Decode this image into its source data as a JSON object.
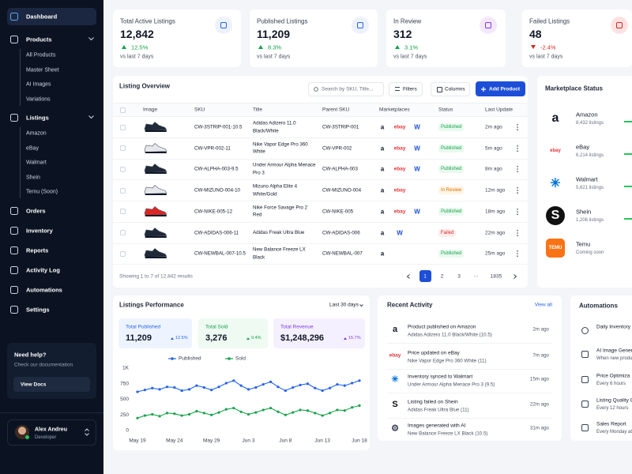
{
  "sidebar": {
    "nav": [
      {
        "label": "Dashboard",
        "active": true
      },
      {
        "label": "Products",
        "children": [
          "All Products",
          "Master Sheet",
          "AI Images",
          "Variations"
        ]
      },
      {
        "label": "Listings",
        "children": [
          "Amazon",
          "eBay",
          "Walmart",
          "Shein",
          "Temu (Soon)"
        ]
      },
      {
        "label": "Orders"
      },
      {
        "label": "Inventory"
      },
      {
        "label": "Reports"
      },
      {
        "label": "Activity Log"
      },
      {
        "label": "Automations"
      },
      {
        "label": "Settings"
      }
    ],
    "help": {
      "title": "Need help?",
      "text": "Check our documentation",
      "button": "View Docs"
    },
    "user": {
      "name": "Alex Andreu",
      "role": "Developer"
    }
  },
  "stats": [
    {
      "title": "Total Active Listings",
      "value": "12,842",
      "change": "12.5%",
      "direction": "up",
      "change_color": "#16a34a",
      "period": "vs last 7 days",
      "icon_color": "#2563eb",
      "icon_bg": "#eef2ff"
    },
    {
      "title": "Published Listings",
      "value": "11,209",
      "change": "8.3%",
      "direction": "up",
      "change_color": "#16a34a",
      "period": "vs last 7 days",
      "icon_color": "#2563eb",
      "icon_bg": "#eef2ff"
    },
    {
      "title": "In Review",
      "value": "312",
      "change": "3.1%",
      "direction": "up",
      "change_color": "#16a34a",
      "period": "vs last 7 days",
      "icon_color": "#7c3aed",
      "icon_bg": "#f3e8ff"
    },
    {
      "title": "Failed Listings",
      "value": "48",
      "change": "-2.4%",
      "direction": "down",
      "change_color": "#dc2626",
      "period": "vs last 7 days",
      "icon_color": "#dc2626",
      "icon_bg": "#fee2e2"
    }
  ],
  "listing_overview": {
    "title": "Listing Overview",
    "search_placeholder": "Search by SKU, Title...",
    "filters": "Filters",
    "columns": "Columns",
    "add_button": "Add Product",
    "headers": [
      "Image",
      "SKU",
      "Title",
      "Parent SKU",
      "Marketplaces",
      "Status",
      "Last Update"
    ],
    "rows": [
      {
        "shoe_color": "#1f2937",
        "sku": "CW-3STRIP-001-10.5",
        "title": "Adidas Adizero 11.0 Black/White",
        "parent_sku": "CW-3STRIP-001",
        "marketplaces": [
          {
            "glyph": "a",
            "color": "#111827"
          },
          {
            "glyph": "ebay",
            "color": "#e53238"
          },
          {
            "glyph": "W",
            "color": "#1d4ed8"
          }
        ],
        "status": "Published",
        "status_color": "#16a34a",
        "status_bg": "#e9f9ef",
        "updated": "2m ago"
      },
      {
        "shoe_color": "#e5e7eb",
        "sku": "CW-VPR-002-11",
        "title": "Nike Vapor Edge Pro 360 White",
        "parent_sku": "CW-VPR-002",
        "marketplaces": [
          {
            "glyph": "a",
            "color": "#111827"
          },
          {
            "glyph": "ebay",
            "color": "#e53238"
          },
          {
            "glyph": "W",
            "color": "#1d4ed8"
          }
        ],
        "status": "Published",
        "status_color": "#16a34a",
        "status_bg": "#e9f9ef",
        "updated": "5m ago"
      },
      {
        "shoe_color": "#1f2937",
        "sku": "CW-ALPHA-003-9.5",
        "title": "Under Armour Alpha Menace Pro 3",
        "parent_sku": "CW-ALPHA-003",
        "marketplaces": [
          {
            "glyph": "a",
            "color": "#111827"
          },
          {
            "glyph": "ebay",
            "color": "#e53238"
          },
          {
            "glyph": "W",
            "color": "#1d4ed8"
          }
        ],
        "status": "Published",
        "status_color": "#16a34a",
        "status_bg": "#e9f9ef",
        "updated": "8m ago"
      },
      {
        "shoe_color": "#e5e7eb",
        "sku": "CW-MIZUNO-004-10",
        "title": "Mizuno Alpha Elite 4 White/Gold",
        "parent_sku": "CW-MIZUNO-004",
        "marketplaces": [
          {
            "glyph": "a",
            "color": "#111827"
          },
          {
            "glyph": "ebay",
            "color": "#e53238"
          }
        ],
        "status": "In Review",
        "status_color": "#d97706",
        "status_bg": "#fff4e5",
        "updated": "12m ago"
      },
      {
        "shoe_color": "#dc2626",
        "sku": "CW-NIKE-005-12",
        "title": "Nike Force Savage Pro 2 Red",
        "parent_sku": "CW-NIKE-005",
        "marketplaces": [
          {
            "glyph": "a",
            "color": "#111827"
          },
          {
            "glyph": "ebay",
            "color": "#e53238"
          },
          {
            "glyph": "W",
            "color": "#1d4ed8"
          }
        ],
        "status": "Published",
        "status_color": "#16a34a",
        "status_bg": "#e9f9ef",
        "updated": "18m ago"
      },
      {
        "shoe_color": "#1f2937",
        "sku": "CW-ADIDAS-006-11",
        "title": "Adidas Freak Ultra Blue",
        "parent_sku": "CW-ADIDAS-006",
        "marketplaces": [
          {
            "glyph": "a",
            "color": "#111827"
          },
          {
            "glyph": "W",
            "color": "#1d4ed8"
          }
        ],
        "status": "Failed",
        "status_color": "#dc2626",
        "status_bg": "#fdecec",
        "updated": "22m ago"
      },
      {
        "shoe_color": "#1f2937",
        "sku": "CW-NEWBAL-007-10.5",
        "title": "New Balance Freeze LX Black",
        "parent_sku": "CW-NEWBAL-007",
        "marketplaces": [
          {
            "glyph": "a",
            "color": "#111827"
          }
        ],
        "status": "Published",
        "status_color": "#16a34a",
        "status_bg": "#e9f9ef",
        "updated": "25m ago"
      }
    ],
    "summary": "Showing 1 to 7 of 12,842 results",
    "pages": [
      {
        "label": "1",
        "active": true
      },
      {
        "label": "2"
      },
      {
        "label": "3"
      },
      {
        "label": "···"
      },
      {
        "label": "1835"
      }
    ]
  },
  "marketplace_status": {
    "title": "Marketplace Status",
    "items": [
      {
        "name": "Amazon",
        "detail": "8,432 listings",
        "glyph": "a",
        "color": "#111827",
        "bg": "#ffffff",
        "bar_color": "#22c55e"
      },
      {
        "name": "eBay",
        "detail": "6,214 listings",
        "glyph": "ebay",
        "color": "#e53238",
        "bg": "#ffffff",
        "bar_color": "#22c55e"
      },
      {
        "name": "Walmart",
        "detail": "5,621 listings",
        "glyph": "✳",
        "color": "#0071dc",
        "bg": "#ffffff",
        "bar_color": "#22c55e"
      },
      {
        "name": "Shein",
        "detail": "1,206 listings",
        "glyph": "S",
        "color": "#ffffff",
        "bg": "#111111",
        "bar_color": "#22c55e"
      },
      {
        "name": "Temu",
        "detail": "Coming soon",
        "glyph": "TEMU",
        "color": "#ffffff",
        "bg": "#f97316"
      }
    ]
  },
  "performance": {
    "title": "Listings Performance",
    "range": "Last 30 days",
    "kpis": [
      {
        "label": "Total Published",
        "value": "11,209",
        "change": "12.5%",
        "color": "#2563eb",
        "bg": "#eef4ff"
      },
      {
        "label": "Total Sold",
        "value": "3,276",
        "change": "9.4%",
        "color": "#16a34a",
        "bg": "#eefaf2"
      },
      {
        "label": "Total Revenue",
        "value": "$1,248,296",
        "change": "15.7%",
        "color": "#7c3aed",
        "bg": "#f5f0ff"
      }
    ]
  },
  "chart_data": {
    "type": "line",
    "categories": [
      "May 19",
      null,
      null,
      null,
      null,
      "May 24",
      null,
      null,
      null,
      null,
      "May 29",
      null,
      null,
      null,
      null,
      "Jun 3",
      null,
      null,
      null,
      null,
      "Jun 8",
      null,
      null,
      null,
      null,
      "Jun 13",
      null,
      null,
      null,
      null,
      "Jun 18"
    ],
    "series": [
      {
        "name": "Published",
        "color": "#2563eb",
        "values": [
          620,
          650,
          680,
          660,
          700,
          690,
          640,
          660,
          720,
          690,
          650,
          700,
          760,
          800,
          720,
          660,
          690,
          740,
          780,
          700,
          640,
          690,
          730,
          750,
          680,
          640,
          680,
          740,
          720,
          760,
          800
        ]
      },
      {
        "name": "Sold",
        "color": "#16a34a",
        "values": [
          200,
          240,
          260,
          230,
          280,
          270,
          240,
          260,
          310,
          280,
          250,
          290,
          340,
          360,
          300,
          260,
          290,
          330,
          360,
          300,
          250,
          290,
          330,
          320,
          280,
          240,
          280,
          330,
          320,
          370,
          400
        ]
      }
    ],
    "ylim": [
      0,
      1000
    ],
    "yticks": [
      0,
      250,
      500,
      750,
      {
        "value": 1000,
        "label": "1K"
      }
    ]
  },
  "recent_activity": {
    "title": "Recent Activity",
    "view_all": "View all",
    "items": [
      {
        "glyph": "a",
        "color": "#111827",
        "title": "Product published on Amazon",
        "detail": "Adidas Adizero 11.0 Black/White (10.5)",
        "time": "2m ago"
      },
      {
        "glyph": "ebay",
        "color": "#e53238",
        "title": "Price updated on eBay",
        "detail": "Nike Vapor Edge Pro 360 White (11)",
        "time": "7m ago"
      },
      {
        "glyph": "✳",
        "color": "#0071dc",
        "title": "Inventory synced to Walmart",
        "detail": "Under Armour Alpha Menace Pro 3 (9.5)",
        "time": "15m ago"
      },
      {
        "glyph": "S",
        "color": "#111111",
        "title": "Listing failed on Shein",
        "detail": "Adidas Freak Ultra Blue (11)",
        "time": "22m ago"
      },
      {
        "glyph": "⚙",
        "color": "#374151",
        "title": "Images generated with AI",
        "detail": "New Balance Freeze LX Black (10.5)",
        "time": "31m ago"
      }
    ]
  },
  "automations": {
    "title": "Automations",
    "items": [
      {
        "title": "Daily Inventory Sy"
      },
      {
        "title": "AI Image Genera",
        "detail": "When new produ"
      },
      {
        "title": "Price Optimiza",
        "detail": "Every 6 hours"
      },
      {
        "title": "Listing Quality C",
        "detail": "Every 12 hours"
      },
      {
        "title": "Sales Report",
        "detail": "Every Monday at"
      }
    ]
  }
}
